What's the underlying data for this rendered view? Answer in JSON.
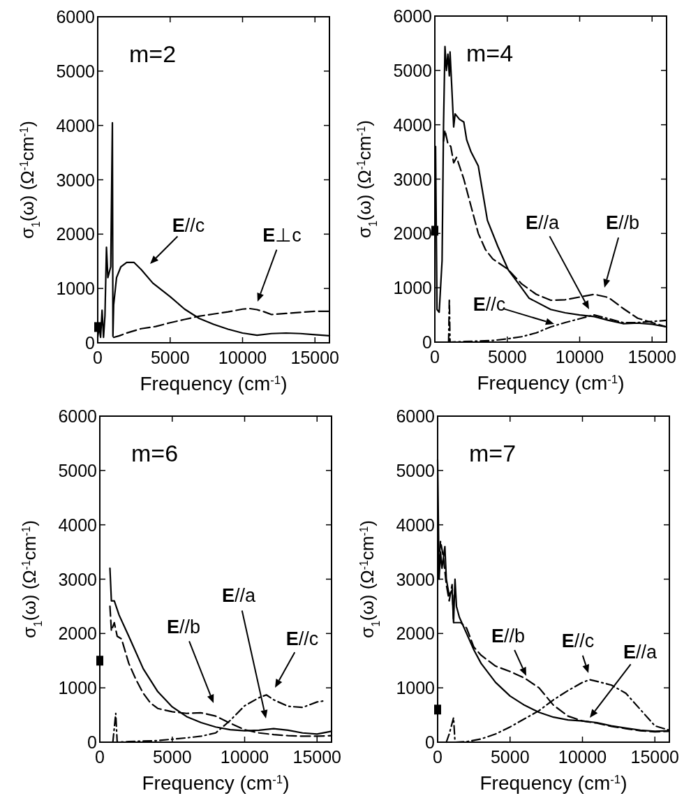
{
  "chart_data": [
    {
      "type": "line",
      "title": "m=2",
      "xlabel": "Frequency (cm$^{-1}$)",
      "ylabel": "σ$_{1}$(ω) (Ω$^{-1}$cm$^{-1}$)",
      "xlim": [
        0,
        16000
      ],
      "xticks": [
        0,
        5000,
        10000,
        15000
      ],
      "ylim": [
        0,
        6000
      ],
      "yticks": [
        0,
        1000,
        2000,
        3000,
        4000,
        5000,
        6000
      ],
      "grid": false,
      "series": [
        {
          "color": "#000000",
          "line_style": "solid",
          "x": [
            0,
            100,
            200,
            300,
            400,
            500,
            604,
            700,
            900,
            1013,
            1050,
            1100,
            1300,
            1600,
            2000,
            2500,
            3000,
            3800,
            5000,
            6000,
            7000,
            8000,
            9000,
            10000,
            11000,
            12000,
            13000,
            14000,
            15000,
            16000
          ],
          "values": [
            100,
            300,
            100,
            600,
            100,
            500,
            1760,
            1200,
            1400,
            4050,
            120,
            700,
            1200,
            1400,
            1480,
            1480,
            1350,
            1100,
            850,
            620,
            450,
            340,
            250,
            180,
            140,
            170,
            180,
            170,
            150,
            130
          ]
        },
        {
          "color": "#000000",
          "line_style": "dashed",
          "x": [
            1100,
            1500,
            2000,
            3000,
            4000,
            5000,
            6000,
            7000,
            8000,
            9000,
            10000,
            10500,
            11000,
            11500,
            12000,
            13000,
            14000,
            15000,
            16000
          ],
          "values": [
            100,
            130,
            180,
            260,
            300,
            370,
            430,
            490,
            530,
            570,
            620,
            630,
            610,
            570,
            520,
            540,
            560,
            580,
            580
          ]
        },
        {
          "type": "scatter",
          "marker": "square",
          "color": "#000000",
          "x": [
            0
          ],
          "values": [
            290
          ]
        }
      ],
      "annotations": [
        "E//c",
        "E⊥c"
      ]
    },
    {
      "type": "line",
      "title": "m=4",
      "xlabel": "Frequency (cm$^{-1}$)",
      "ylabel": "σ$_{1}$(ω) (Ω$^{-1}$cm$^{-1}$)",
      "xlim": [
        0,
        16000
      ],
      "xticks": [
        0,
        5000,
        10000,
        15000
      ],
      "ylim": [
        0,
        6000
      ],
      "yticks": [
        0,
        1000,
        2000,
        3000,
        4000,
        5000,
        6000
      ],
      "grid": false,
      "series": [
        {
          "color": "#000000",
          "line_style": "solid",
          "x": [
            50,
            150,
            300,
            500,
            600,
            700,
            800,
            900,
            1000,
            1050,
            1150,
            1300,
            1400,
            1700,
            2000,
            2200,
            2500,
            3000,
            3630,
            4350,
            5070,
            5790,
            6500,
            8000,
            9000,
            10000,
            11000,
            12000,
            13000,
            14000,
            15000,
            16000
          ],
          "values": [
            3600,
            600,
            550,
            1500,
            4000,
            5440,
            5000,
            5300,
            4900,
            5340,
            4800,
            3960,
            4200,
            4100,
            4050,
            3720,
            3500,
            3240,
            2240,
            1760,
            1330,
            1070,
            810,
            600,
            540,
            500,
            470,
            400,
            340,
            350,
            330,
            280
          ]
        },
        {
          "color": "#000000",
          "line_style": "dashed",
          "x": [
            600,
            700,
            900,
            1100,
            1300,
            1500,
            2000,
            2500,
            3000,
            3500,
            4000,
            5000,
            6000,
            7000,
            8000,
            9000,
            10000,
            11000,
            12000,
            13000,
            14000,
            15000,
            16000
          ],
          "values": [
            3700,
            3900,
            3650,
            3600,
            3300,
            3400,
            3000,
            2500,
            2000,
            1700,
            1530,
            1350,
            1070,
            880,
            770,
            780,
            830,
            880,
            820,
            620,
            440,
            360,
            280
          ]
        },
        {
          "color": "#000000",
          "line_style": "dashdot",
          "x": [
            950,
            1000,
            1050,
            2000,
            3000,
            4000,
            5000,
            6000,
            7000,
            8000,
            9000,
            10000,
            11000,
            12000,
            13000,
            14000,
            15000,
            16000
          ],
          "values": [
            0,
            800,
            0,
            10,
            20,
            30,
            60,
            100,
            170,
            280,
            360,
            430,
            500,
            430,
            360,
            360,
            380,
            400
          ]
        },
        {
          "type": "scatter",
          "marker": "square",
          "color": "#000000",
          "x": [
            0
          ],
          "values": [
            2050
          ]
        }
      ],
      "annotations": [
        "E//a",
        "E//b",
        "E//c"
      ]
    },
    {
      "type": "line",
      "title": "m=6",
      "xlabel": "Frequency (cm$^{-1}$)",
      "ylabel": "σ$_{1}$(ω) (Ω$^{-1}$cm$^{-1}$)",
      "xlim": [
        0,
        16000
      ],
      "xticks": [
        0,
        5000,
        10000,
        15000
      ],
      "ylim": [
        0,
        6000
      ],
      "yticks": [
        0,
        1000,
        2000,
        3000,
        4000,
        5000,
        6000
      ],
      "grid": false,
      "series": [
        {
          "color": "#000000",
          "line_style": "solid",
          "x": [
            700,
            800,
            1000,
            1330,
            2000,
            3000,
            4000,
            5000,
            6000,
            7000,
            8000,
            9000,
            10000,
            11000,
            12000,
            13000,
            14000,
            15000,
            16000
          ],
          "values": [
            3200,
            2600,
            2600,
            2340,
            1950,
            1350,
            930,
            650,
            470,
            360,
            280,
            230,
            210,
            220,
            250,
            220,
            170,
            150,
            200
          ]
        },
        {
          "color": "#000000",
          "line_style": "dashed",
          "x": [
            700,
            800,
            1000,
            1200,
            1500,
            2000,
            2500,
            3000,
            3500,
            4000,
            5000,
            6000,
            7000,
            8000,
            9000,
            10000,
            11000,
            12000,
            13000,
            14000,
            15000,
            16000
          ],
          "values": [
            2500,
            2050,
            2200,
            1950,
            1900,
            1450,
            1150,
            900,
            720,
            620,
            560,
            530,
            540,
            480,
            350,
            230,
            170,
            140,
            120,
            110,
            110,
            120
          ]
        },
        {
          "color": "#000000",
          "line_style": "dashdot",
          "x": [
            900,
            1100,
            1200,
            2000,
            4000,
            6000,
            7000,
            8000,
            9000,
            10000,
            11000,
            11500,
            12000,
            13000,
            14000,
            15000,
            15500
          ],
          "values": [
            0,
            530,
            0,
            10,
            30,
            80,
            110,
            170,
            400,
            670,
            820,
            870,
            780,
            660,
            640,
            740,
            760
          ]
        },
        {
          "type": "scatter",
          "marker": "square",
          "color": "#000000",
          "x": [
            0
          ],
          "values": [
            1500
          ]
        }
      ],
      "annotations": [
        "E//b",
        "E//a",
        "E//c"
      ]
    },
    {
      "type": "line",
      "title": "m=7",
      "xlabel": "Frequency (cm$^{-1}$)",
      "ylabel": "σ$_{1}$(ω) (Ω$^{-1}$cm$^{-1}$)",
      "xlim": [
        0,
        16000
      ],
      "xticks": [
        0,
        5000,
        10000,
        15000
      ],
      "ylim": [
        0,
        6000
      ],
      "yticks": [
        0,
        1000,
        2000,
        3000,
        4000,
        5000,
        6000
      ],
      "grid": false,
      "series": [
        {
          "color": "#000000",
          "line_style": "solid",
          "x": [
            0,
            100,
            200,
            300,
            500,
            600,
            800,
            1000,
            1100,
            1200,
            1300,
            1500,
            2000,
            2500,
            3000,
            4000,
            5000,
            6000,
            7000,
            8000,
            9000,
            10000,
            11000,
            12000,
            13000,
            14000,
            15000,
            16000
          ],
          "values": [
            5200,
            3000,
            3500,
            3200,
            3600,
            3000,
            2700,
            2800,
            2200,
            3000,
            2500,
            2300,
            2000,
            1700,
            1450,
            1100,
            850,
            680,
            550,
            460,
            410,
            390,
            360,
            300,
            260,
            220,
            200,
            210
          ]
        },
        {
          "color": "#000000",
          "line_style": "dashed",
          "x": [
            0,
            200,
            400,
            600,
            800,
            1000,
            1100,
            1300,
            1600,
            2000,
            2500,
            3000,
            4000,
            5000,
            6000,
            7000,
            8000,
            9000,
            10000,
            11000,
            12000,
            13000,
            14000,
            15000,
            16000
          ],
          "values": [
            3000,
            3700,
            3400,
            2900,
            2600,
            2900,
            2200,
            2200,
            2200,
            2100,
            1750,
            1600,
            1400,
            1300,
            1180,
            1000,
            680,
            480,
            390,
            350,
            290,
            250,
            210,
            190,
            200
          ]
        },
        {
          "color": "#000000",
          "line_style": "dashdot",
          "x": [
            600,
            800,
            1000,
            1100,
            1200,
            2000,
            3000,
            4000,
            5000,
            6000,
            7000,
            8000,
            9000,
            10000,
            10500,
            11000,
            12000,
            13000,
            14000,
            15000,
            16000
          ],
          "values": [
            0,
            150,
            350,
            450,
            0,
            10,
            60,
            150,
            280,
            430,
            580,
            780,
            950,
            1100,
            1150,
            1120,
            1050,
            900,
            600,
            300,
            220
          ]
        },
        {
          "type": "scatter",
          "marker": "square",
          "color": "#000000",
          "x": [
            0
          ],
          "values": [
            600
          ]
        }
      ],
      "annotations": [
        "E//b",
        "E//c",
        "E//a"
      ]
    }
  ]
}
